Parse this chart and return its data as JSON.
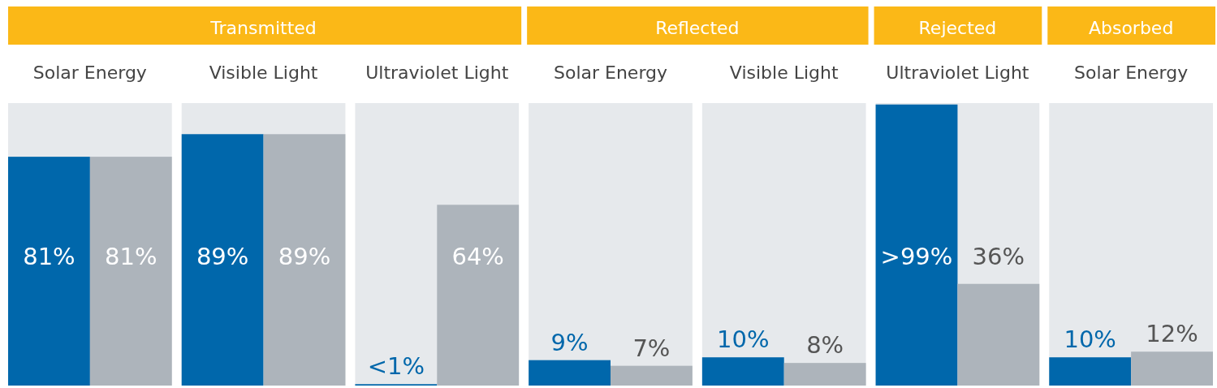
{
  "chart_data": {
    "type": "bar",
    "categories": [
      "Solar Energy",
      "Visible Light",
      "Ultraviolet Light",
      "Solar Energy",
      "Visible Light",
      "Ultraviolet Light",
      "Solar Energy"
    ],
    "series": [
      {
        "color": "#0067ab",
        "values": [
          81,
          89,
          0.5,
          9,
          10,
          99.5,
          10
        ],
        "value_labels": [
          "81%",
          "89%",
          "<1%",
          "9%",
          "10%",
          ">99%",
          "10%"
        ]
      },
      {
        "color": "#adb4bb",
        "values": [
          81,
          89,
          64,
          7,
          8,
          36,
          12
        ],
        "value_labels": [
          "81%",
          "89%",
          "64%",
          "7%",
          "8%",
          "36%",
          "12%"
        ]
      }
    ],
    "annotations": [
      "Transmitted",
      "Reflected",
      "Rejected",
      "Absorbed"
    ],
    "ylim": [
      0,
      100
    ],
    "bands": [
      {
        "axis": "y",
        "from": 0,
        "to": 100,
        "color": "#e6e9ec"
      },
      {
        "axis": "y",
        "from": 0,
        "to": 100,
        "color": "#e6e9ec"
      },
      {
        "axis": "y",
        "from": 0,
        "to": 100,
        "color": "#e6e9ec"
      },
      {
        "axis": "y",
        "from": 0,
        "to": 100,
        "color": "#e6e9ec"
      },
      {
        "axis": "y",
        "from": 0,
        "to": 100,
        "color": "#e6e9ec"
      },
      {
        "axis": "y",
        "from": 0,
        "to": 100,
        "color": "#e6e9ec"
      },
      {
        "axis": "y",
        "from": 0,
        "to": 100,
        "color": "#e6e9ec"
      }
    ]
  }
}
